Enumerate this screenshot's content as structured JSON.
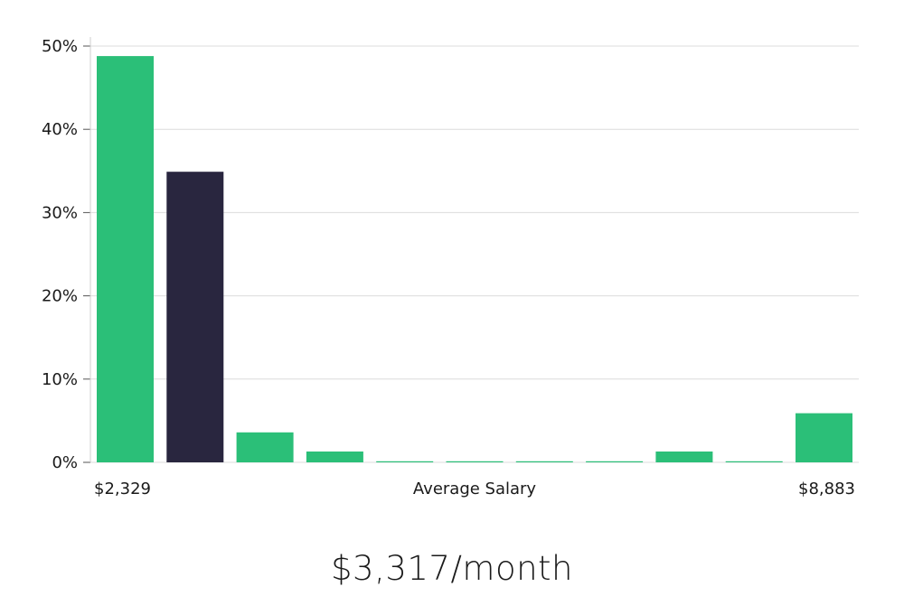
{
  "chart_data": {
    "type": "bar",
    "title": "",
    "xlabel": "Average Salary",
    "x_min_label": "$2,329",
    "x_max_label": "$8,883",
    "ylabel": "",
    "ylim": [
      0,
      50
    ],
    "yticks": [
      0,
      10,
      20,
      30,
      40,
      50
    ],
    "ytick_labels": [
      "0%",
      "10%",
      "20%",
      "30%",
      "40%",
      "50%"
    ],
    "grid": true,
    "values": [
      48.8,
      34.9,
      3.6,
      1.3,
      0.1,
      0.1,
      0.1,
      0.1,
      1.3,
      0.1,
      5.9
    ],
    "highlight_index": 1,
    "colors": {
      "bar": "#2bbf78",
      "highlight": "#29263f",
      "grid": "#dcdcdc",
      "axis": "#cfcfcf"
    }
  },
  "summary": {
    "value": "$3,317/month"
  }
}
